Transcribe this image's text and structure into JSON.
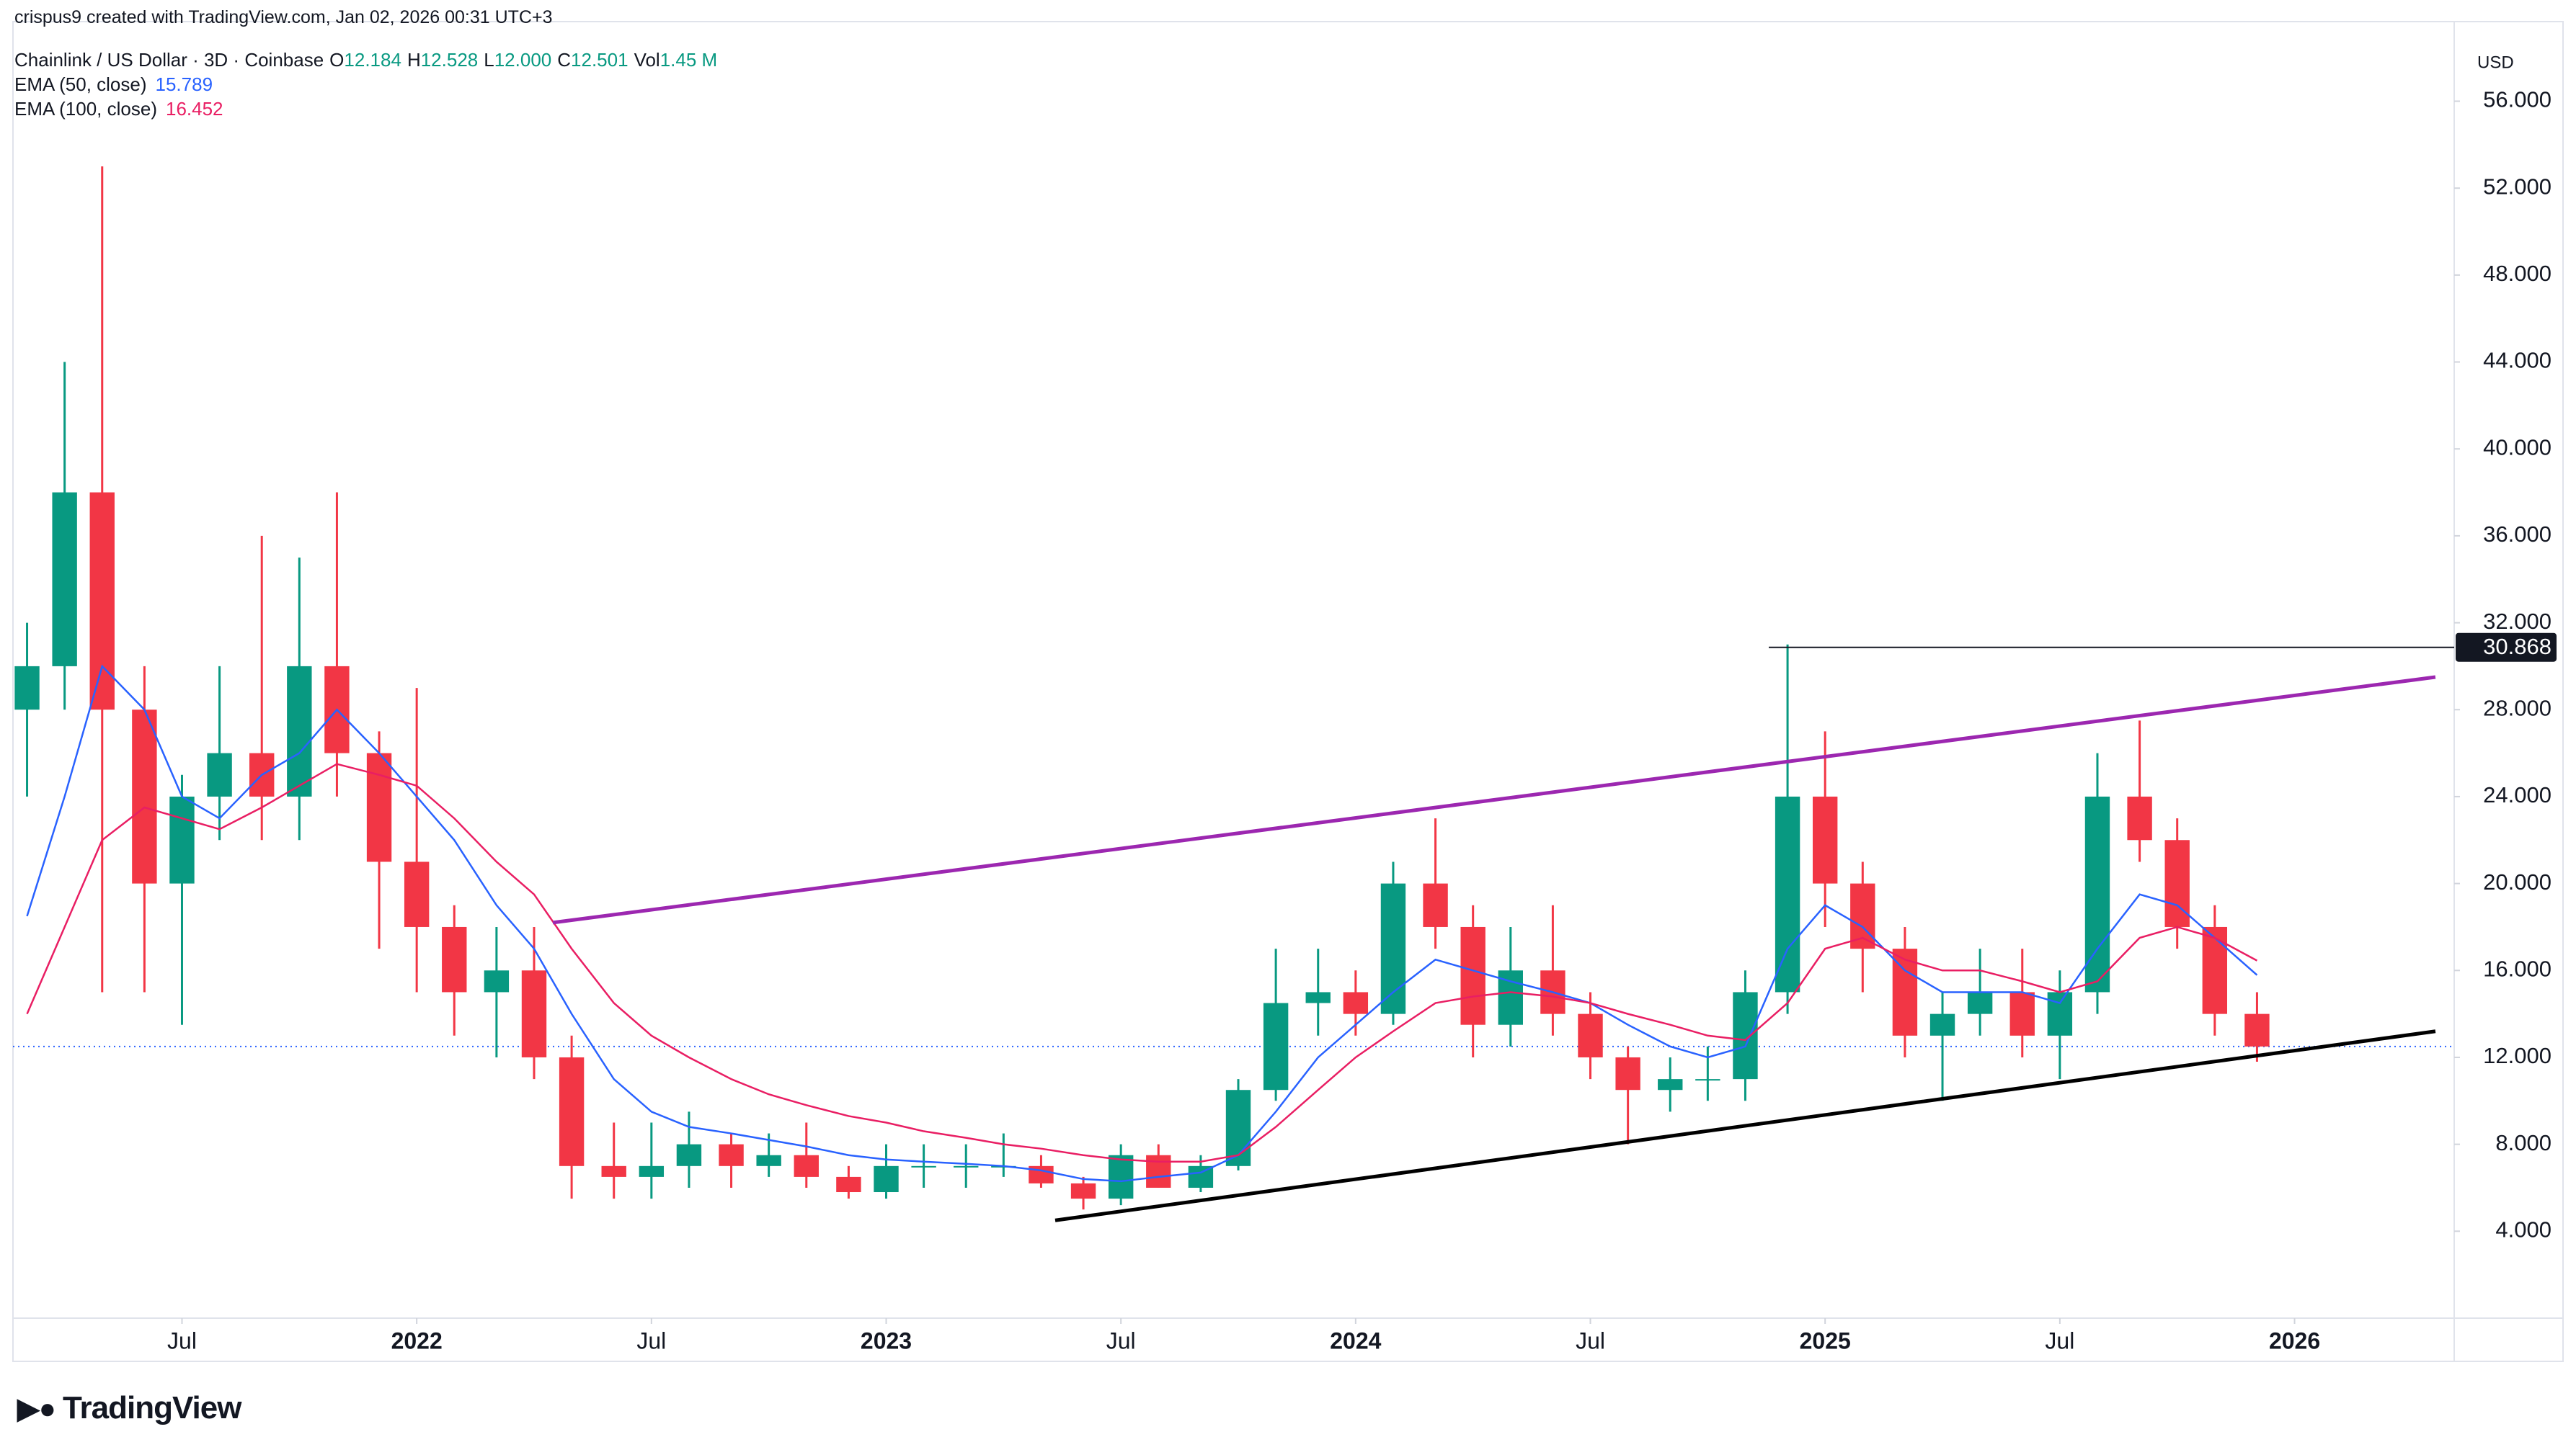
{
  "header": {
    "credit": "crispus9 created with TradingView.com, Jan 02, 2026 00:31 UTC+3"
  },
  "footer": {
    "logo": "TradingView"
  },
  "chart_data": {
    "type": "candlestick",
    "legend_title": "Chainlink / US Dollar · 3D · Coinbase",
    "ohlc_legend": [
      {
        "key": "O",
        "value": "12.184"
      },
      {
        "key": "H",
        "value": "12.528"
      },
      {
        "key": "L",
        "value": "12.000"
      },
      {
        "key": "C",
        "value": "12.501"
      },
      {
        "key": "Vol",
        "value": "1.45 M"
      }
    ],
    "y_axis_unit": "USD",
    "up_color": "#089981",
    "down_color": "#f23645",
    "x": [
      2021.17,
      2021.25,
      2021.33,
      2021.42,
      2021.5,
      2021.58,
      2021.67,
      2021.75,
      2021.83,
      2021.92,
      2022.0,
      2022.08,
      2022.17,
      2022.25,
      2022.33,
      2022.42,
      2022.5,
      2022.58,
      2022.67,
      2022.75,
      2022.83,
      2022.92,
      2023.0,
      2023.08,
      2023.17,
      2023.25,
      2023.33,
      2023.42,
      2023.5,
      2023.58,
      2023.67,
      2023.75,
      2023.83,
      2023.92,
      2024.0,
      2024.08,
      2024.17,
      2024.25,
      2024.33,
      2024.42,
      2024.5,
      2024.58,
      2024.67,
      2024.75,
      2024.83,
      2024.92,
      2025.0,
      2025.08,
      2025.17,
      2025.25,
      2025.33,
      2025.42,
      2025.5,
      2025.58,
      2025.67,
      2025.75,
      2025.83,
      2025.92
    ],
    "open": [
      28,
      30,
      38,
      28,
      20,
      24,
      26,
      24,
      30,
      26,
      21,
      18,
      15,
      16,
      12,
      7,
      6.5,
      7,
      8,
      7,
      7.5,
      6.5,
      5.8,
      7,
      7,
      7,
      7,
      6.2,
      5.5,
      7.5,
      6,
      7,
      10.5,
      14.5,
      15,
      14,
      20,
      18,
      13.5,
      16,
      14,
      12,
      10.5,
      11,
      11,
      15,
      24,
      20,
      17,
      13,
      14,
      15,
      13,
      15,
      24,
      22,
      18,
      14
    ],
    "high": [
      32,
      44,
      53,
      30,
      25,
      30,
      36,
      35,
      38,
      27,
      29,
      19,
      18,
      18,
      13,
      9,
      9,
      9.5,
      8.5,
      8.5,
      9,
      7,
      8,
      8,
      8,
      8.5,
      7.5,
      6.5,
      8,
      8,
      7.5,
      11,
      17,
      17,
      16,
      21,
      23,
      19,
      18,
      19,
      15,
      12.5,
      12,
      12.5,
      16,
      31,
      27,
      21,
      18,
      15,
      17,
      17,
      16,
      26,
      27.5,
      23,
      19,
      15
    ],
    "low": [
      24,
      28,
      15,
      15,
      13.5,
      22,
      22,
      22,
      24,
      17,
      15,
      13,
      12,
      11,
      5.5,
      5.5,
      5.5,
      6,
      6,
      6.5,
      6,
      5.5,
      5.5,
      6,
      6,
      6.5,
      6,
      5,
      5.2,
      6,
      5.8,
      6.8,
      10,
      13,
      13,
      13.5,
      17,
      12,
      12.5,
      13,
      11,
      8,
      9.5,
      10,
      10,
      14,
      18,
      15,
      12,
      10,
      13,
      12,
      11,
      14,
      21,
      17,
      13,
      11.8
    ],
    "close": [
      30,
      38,
      28,
      20,
      24,
      26,
      24,
      30,
      26,
      21,
      18,
      15,
      16,
      12,
      7,
      6.5,
      7,
      8,
      7,
      7.5,
      6.5,
      5.8,
      7,
      7,
      7,
      7,
      6.2,
      5.5,
      7.5,
      6,
      7,
      10.5,
      14.5,
      15,
      14,
      20,
      18,
      13.5,
      16,
      14,
      12,
      10.5,
      11,
      11,
      15,
      24,
      20,
      17,
      13,
      14,
      15,
      13,
      15,
      24,
      22,
      18,
      14,
      12.501
    ],
    "series": [
      {
        "name": "EMA (50, close)",
        "color": "#2962ff",
        "values": [
          18.5,
          24,
          30,
          28,
          24,
          23,
          25,
          26,
          28,
          26,
          24,
          22,
          19,
          17,
          14,
          11,
          9.5,
          8.8,
          8.5,
          8.2,
          7.9,
          7.5,
          7.3,
          7.2,
          7.1,
          7,
          6.8,
          6.4,
          6.3,
          6.5,
          6.7,
          7.5,
          9.5,
          12,
          13.5,
          15,
          16.5,
          16,
          15.5,
          15,
          14.5,
          13.5,
          12.5,
          12,
          12.5,
          17,
          19,
          18,
          16,
          15,
          15,
          15,
          14.5,
          17,
          19.5,
          19,
          17.5,
          15.789
        ]
      },
      {
        "name": "EMA (100, close)",
        "color": "#e91e63",
        "values": [
          14,
          18,
          22,
          23.5,
          23,
          22.5,
          23.5,
          24.5,
          25.5,
          25,
          24.5,
          23,
          21,
          19.5,
          17,
          14.5,
          13,
          12,
          11,
          10.3,
          9.8,
          9.3,
          9,
          8.6,
          8.3,
          8,
          7.8,
          7.5,
          7.3,
          7.2,
          7.2,
          7.5,
          8.8,
          10.5,
          12,
          13.2,
          14.5,
          14.8,
          15,
          14.8,
          14.5,
          14,
          13.5,
          13,
          12.8,
          14.5,
          17,
          17.5,
          16.5,
          16,
          16,
          15.5,
          15,
          15.5,
          17.5,
          18,
          17.5,
          16.452
        ]
      }
    ],
    "trendlines": [
      {
        "color": "#9c27b0",
        "x": [
          2022.29,
          2026.3
        ],
        "y": [
          18.2,
          29.5
        ]
      },
      {
        "color": "#000000",
        "x": [
          2023.36,
          2026.3
        ],
        "y": [
          4.5,
          13.2
        ]
      }
    ],
    "hline": {
      "value": 30.868,
      "x_start": 2024.88
    },
    "price_line": 12.501,
    "xlim": [
      2021.14,
      2026.34
    ],
    "ylim": [
      0,
      59
    ],
    "xticks": [
      {
        "value": 2021.5,
        "label": "Jul"
      },
      2022,
      {
        "value": 2022.5,
        "label": "Jul"
      },
      2023,
      {
        "value": 2023.5,
        "label": "Jul"
      },
      2024,
      {
        "value": 2024.5,
        "label": "Jul"
      },
      2025,
      {
        "value": 2025.5,
        "label": "Jul"
      },
      2026
    ],
    "yticks": [
      {
        "value": 4,
        "label": "4.000"
      },
      {
        "value": 8,
        "label": "8.000"
      },
      {
        "value": 12,
        "label": "12.000"
      },
      {
        "value": 16,
        "label": "16.000"
      },
      {
        "value": 20,
        "label": "20.000"
      },
      {
        "value": 24,
        "label": "24.000"
      },
      {
        "value": 28,
        "label": "28.000"
      },
      {
        "value": 32,
        "label": "32.000"
      },
      {
        "value": 36,
        "label": "36.000"
      },
      {
        "value": 40,
        "label": "40.000"
      },
      {
        "value": 44,
        "label": "44.000"
      },
      {
        "value": 48,
        "label": "48.000"
      },
      {
        "value": 52,
        "label": "52.000"
      },
      {
        "value": 56,
        "label": "56.000"
      }
    ],
    "grid": false
  }
}
